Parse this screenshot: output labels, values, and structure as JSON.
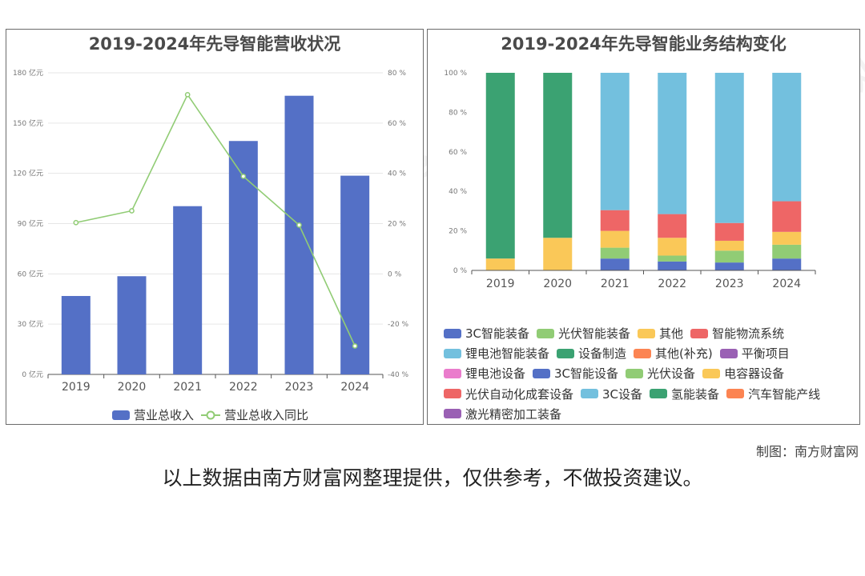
{
  "charts": [
    {
      "title": "2019-2024年先导智能营收状况",
      "legend": [
        "营业总收入",
        "营业总收入同比"
      ]
    },
    {
      "title": "2019-2024年先导智能业务结构变化",
      "legend": [
        "3C智能装备",
        "光伏智能装备",
        "其他",
        "智能物流系统",
        "锂电池智能装备",
        "设备制造",
        "其他(补充)",
        "平衡项目",
        "锂电池设备",
        "3C智能设备",
        "光伏设备",
        "电容器设备",
        "光伏自动化成套设备",
        "3C设备",
        "氢能装备",
        "汽车智能产线",
        "激光精密加工装备"
      ]
    }
  ],
  "chart_data": [
    {
      "type": "bar",
      "title": "2019-2024年先导智能营收状况",
      "categories": [
        "2019",
        "2020",
        "2021",
        "2022",
        "2023",
        "2024"
      ],
      "y_left": {
        "ticks": [
          "0 亿元",
          "30 亿元",
          "60 亿元",
          "90 亿元",
          "120 亿元",
          "150 亿元",
          "180 亿元"
        ],
        "ylim": [
          0,
          180
        ]
      },
      "y_right": {
        "ticks": [
          "-40 %",
          "-20 %",
          "0 %",
          "20 %",
          "40 %",
          "60 %",
          "80 %"
        ],
        "ylim": [
          -40,
          80
        ]
      },
      "series": [
        {
          "name": "营业总收入",
          "type": "bar",
          "axis": "left",
          "color": "#5470c6",
          "values": [
            46.8,
            58.6,
            100.4,
            139.3,
            166.3,
            118.6
          ]
        },
        {
          "name": "营业总收入同比",
          "type": "line",
          "axis": "right",
          "color": "#91cc75",
          "values": [
            20.4,
            25.1,
            71.3,
            38.8,
            19.4,
            -28.7
          ]
        }
      ],
      "grid": true,
      "legend_position": "bottom"
    },
    {
      "type": "bar",
      "stacked": true,
      "title": "2019-2024年先导智能业务结构变化",
      "categories": [
        "2019",
        "2020",
        "2021",
        "2022",
        "2023",
        "2024"
      ],
      "y": {
        "ticks": [
          "0 %",
          "20 %",
          "40 %",
          "60 %",
          "80 %",
          "100 %"
        ],
        "ylim": [
          0,
          100
        ]
      },
      "series": [
        {
          "name": "3C智能装备",
          "color": "#5470c6",
          "values": [
            0,
            0,
            6,
            4.5,
            4,
            6
          ]
        },
        {
          "name": "光伏智能装备",
          "color": "#91cc75",
          "values": [
            0,
            0,
            5.5,
            3,
            6,
            7
          ]
        },
        {
          "name": "其他",
          "color": "#fac858",
          "values": [
            6,
            16.5,
            8.5,
            9,
            5,
            6.5
          ]
        },
        {
          "name": "智能物流系统",
          "color": "#ee6666",
          "values": [
            0,
            0,
            10.5,
            12,
            9,
            15.5
          ]
        },
        {
          "name": "锂电池智能装备",
          "color": "#73c0de",
          "values": [
            0,
            0,
            69.5,
            71.5,
            76,
            65
          ]
        },
        {
          "name": "设备制造",
          "color": "#3ba272",
          "values": [
            94,
            83.5,
            0,
            0,
            0,
            0
          ]
        },
        {
          "name": "其他(补充)",
          "color": "#fc8452",
          "values": [
            0,
            0,
            0,
            0,
            0,
            0
          ]
        },
        {
          "name": "平衡项目",
          "color": "#9a60b4",
          "values": [
            0,
            0,
            0,
            0,
            0,
            0
          ]
        },
        {
          "name": "锂电池设备",
          "color": "#ea7ccc",
          "values": [
            0,
            0,
            0,
            0,
            0,
            0
          ]
        },
        {
          "name": "3C智能设备",
          "color": "#5470c6",
          "values": [
            0,
            0,
            0,
            0,
            0,
            0
          ]
        },
        {
          "name": "光伏设备",
          "color": "#91cc75",
          "values": [
            0,
            0,
            0,
            0,
            0,
            0
          ]
        },
        {
          "name": "电容器设备",
          "color": "#fac858",
          "values": [
            0,
            0,
            0,
            0,
            0,
            0
          ]
        },
        {
          "name": "光伏自动化成套设备",
          "color": "#ee6666",
          "values": [
            0,
            0,
            0,
            0,
            0,
            0
          ]
        },
        {
          "name": "3C设备",
          "color": "#73c0de",
          "values": [
            0,
            0,
            0,
            0,
            0,
            0
          ]
        },
        {
          "name": "氢能装备",
          "color": "#3ba272",
          "values": [
            0,
            0,
            0,
            0,
            0,
            0
          ]
        },
        {
          "name": "汽车智能产线",
          "color": "#fc8452",
          "values": [
            0,
            0,
            0,
            0,
            0,
            0
          ]
        },
        {
          "name": "激光精密加工装备",
          "color": "#9a60b4",
          "values": [
            0,
            0,
            0,
            0,
            0,
            0
          ]
        }
      ],
      "grid": false,
      "legend_position": "bottom"
    }
  ],
  "credit": "制图：南方财富网",
  "footer": "以上数据由南方财富网整理提供，仅供参考，不做投资建议。",
  "watermark": [
    "南方财富网",
    "southmoney.com"
  ]
}
